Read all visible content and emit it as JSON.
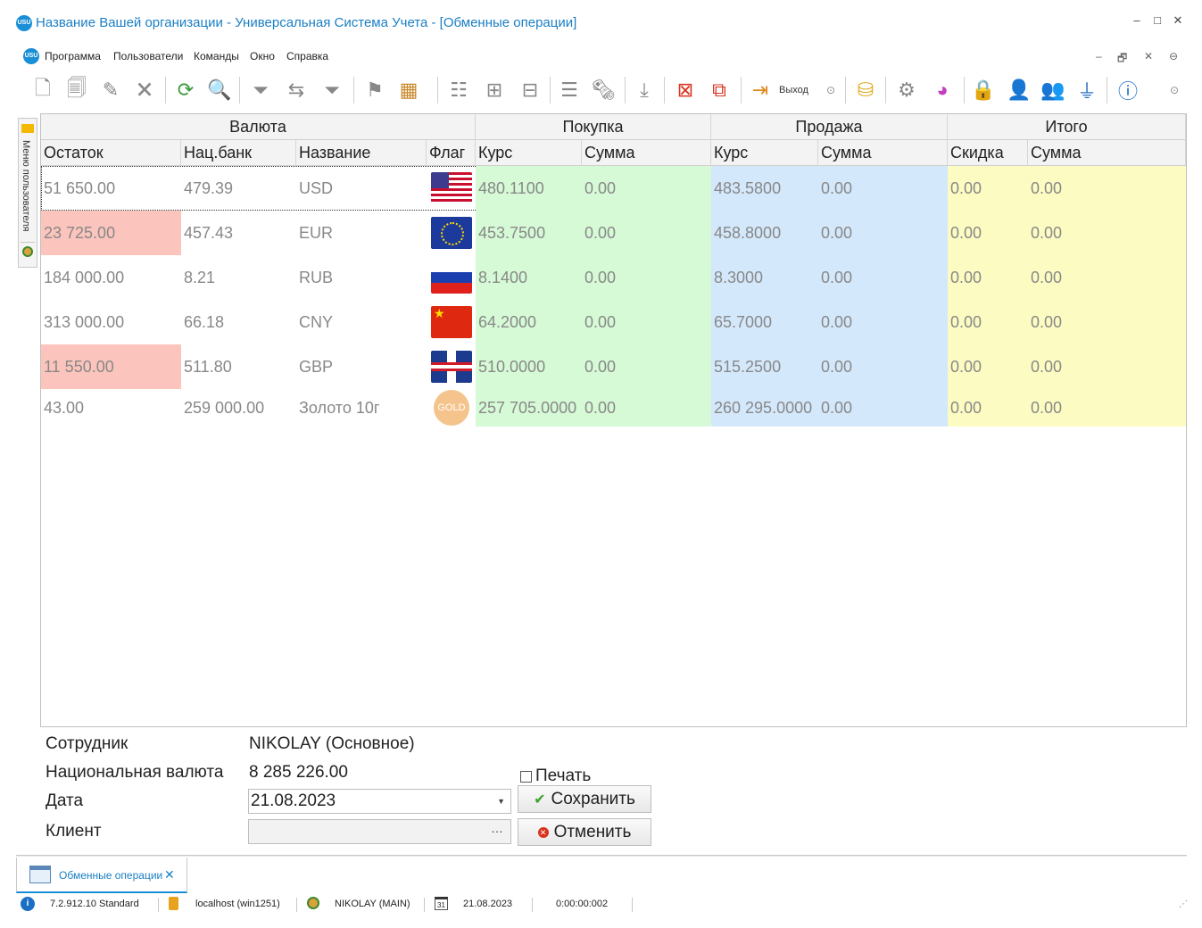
{
  "window": {
    "title": "Название Вашей организации - Универсальная Система Учета - [Обменные операции]",
    "logo": "USU",
    "controls": [
      "–",
      "□",
      "✕"
    ]
  },
  "menu": {
    "logo": "USU",
    "items": [
      "Программа",
      "Пользователи",
      "Команды",
      "Окно",
      "Справка"
    ],
    "mdi_controls": [
      "–",
      "🗗",
      "✕",
      "⊖"
    ]
  },
  "toolbar": {
    "exit_label": "Выход"
  },
  "sidetab": {
    "label": "Меню пользователя"
  },
  "grid": {
    "groups": [
      "Валюта",
      "Покупка",
      "Продажа",
      "Итого"
    ],
    "columns": [
      "Остаток",
      "Нац.банк",
      "Название",
      "Флаг",
      "Курс",
      "Сумма",
      "Курс",
      "Сумма",
      "Скидка",
      "Сумма"
    ],
    "rows": [
      {
        "balance": "51 650.00",
        "nbank": "479.39",
        "name": "USD",
        "flag": "us-flag-icon",
        "buy_rate": "480.1100",
        "buy_sum": "0.00",
        "sell_rate": "483.5800",
        "sell_sum": "0.00",
        "discount": "0.00",
        "total": "0.00",
        "low": false
      },
      {
        "balance": "23 725.00",
        "nbank": "457.43",
        "name": "EUR",
        "flag": "eu-flag-icon",
        "buy_rate": "453.7500",
        "buy_sum": "0.00",
        "sell_rate": "458.8000",
        "sell_sum": "0.00",
        "discount": "0.00",
        "total": "0.00",
        "low": true
      },
      {
        "balance": "184 000.00",
        "nbank": "8.21",
        "name": "RUB",
        "flag": "ru-flag-icon",
        "buy_rate": "8.1400",
        "buy_sum": "0.00",
        "sell_rate": "8.3000",
        "sell_sum": "0.00",
        "discount": "0.00",
        "total": "0.00",
        "low": false
      },
      {
        "balance": "313 000.00",
        "nbank": "66.18",
        "name": "CNY",
        "flag": "cn-flag-icon",
        "buy_rate": "64.2000",
        "buy_sum": "0.00",
        "sell_rate": "65.7000",
        "sell_sum": "0.00",
        "discount": "0.00",
        "total": "0.00",
        "low": false
      },
      {
        "balance": "11 550.00",
        "nbank": "511.80",
        "name": "GBP",
        "flag": "gb-flag-icon",
        "buy_rate": "510.0000",
        "buy_sum": "0.00",
        "sell_rate": "515.2500",
        "sell_sum": "0.00",
        "discount": "0.00",
        "total": "0.00",
        "low": true
      },
      {
        "balance": "43.00",
        "nbank": "259 000.00",
        "name": "Золото 10г",
        "flag": "gold-icon",
        "flag_text": "GOLD",
        "buy_rate": "257 705.0000",
        "buy_sum": "0.00",
        "sell_rate": "260 295.0000",
        "sell_sum": "0.00",
        "discount": "0.00",
        "total": "0.00",
        "low": false
      }
    ],
    "colors": {
      "buy": "#d6fad6",
      "sell": "#d4e8fb",
      "total": "#fcfcc2",
      "low_balance": "#fbc4bc"
    }
  },
  "form": {
    "employee_label": "Сотрудник",
    "employee_value": "NIKOLAY (Основное)",
    "national_label": "Национальная валюта",
    "national_value": "8 285 226.00",
    "date_label": "Дата",
    "date_value": "21.08.2023",
    "client_label": "Клиент",
    "client_value": "",
    "print_label": "Печать",
    "save_label": "Сохранить",
    "cancel_label": "Отменить"
  },
  "doctab": {
    "label": "Обменные операции",
    "close": "✕"
  },
  "status": {
    "version": "7.2.912.10 Standard",
    "server": "localhost (win1251)",
    "user": "NIKOLAY (MAIN)",
    "date": "21.08.2023",
    "timer": "0:00:00:002",
    "calendar_day": "31"
  }
}
